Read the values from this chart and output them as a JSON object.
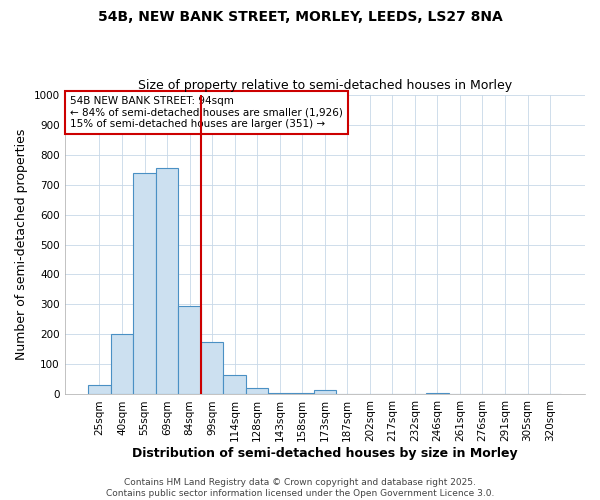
{
  "title_line1": "54B, NEW BANK STREET, MORLEY, LEEDS, LS27 8NA",
  "title_line2": "Size of property relative to semi-detached houses in Morley",
  "xlabel": "Distribution of semi-detached houses by size in Morley",
  "ylabel": "Number of semi-detached properties",
  "categories": [
    "25sqm",
    "40sqm",
    "55sqm",
    "69sqm",
    "84sqm",
    "99sqm",
    "114sqm",
    "128sqm",
    "143sqm",
    "158sqm",
    "173sqm",
    "187sqm",
    "202sqm",
    "217sqm",
    "232sqm",
    "246sqm",
    "261sqm",
    "276sqm",
    "291sqm",
    "305sqm",
    "320sqm"
  ],
  "values": [
    30,
    200,
    740,
    755,
    295,
    175,
    65,
    20,
    5,
    5,
    15,
    0,
    0,
    0,
    0,
    5,
    0,
    0,
    0,
    0,
    0
  ],
  "bar_color": "#cce0f0",
  "bar_edge_color": "#4a90c4",
  "vline_color": "#cc0000",
  "vline_position": 4.5,
  "annotation_text_line1": "54B NEW BANK STREET: 94sqm",
  "annotation_text_line2": "← 84% of semi-detached houses are smaller (1,926)",
  "annotation_text_line3": "15% of semi-detached houses are larger (351) →",
  "annotation_box_color": "#cc0000",
  "ylim": [
    0,
    1000
  ],
  "yticks": [
    0,
    100,
    200,
    300,
    400,
    500,
    600,
    700,
    800,
    900,
    1000
  ],
  "grid_color": "#c8d8e8",
  "plot_bg_color": "#ffffff",
  "fig_bg_color": "#ffffff",
  "footer_text": "Contains HM Land Registry data © Crown copyright and database right 2025.\nContains public sector information licensed under the Open Government Licence 3.0.",
  "title_fontsize": 10,
  "subtitle_fontsize": 9,
  "axis_label_fontsize": 9,
  "tick_fontsize": 7.5,
  "annotation_fontsize": 7.5,
  "footer_fontsize": 6.5
}
